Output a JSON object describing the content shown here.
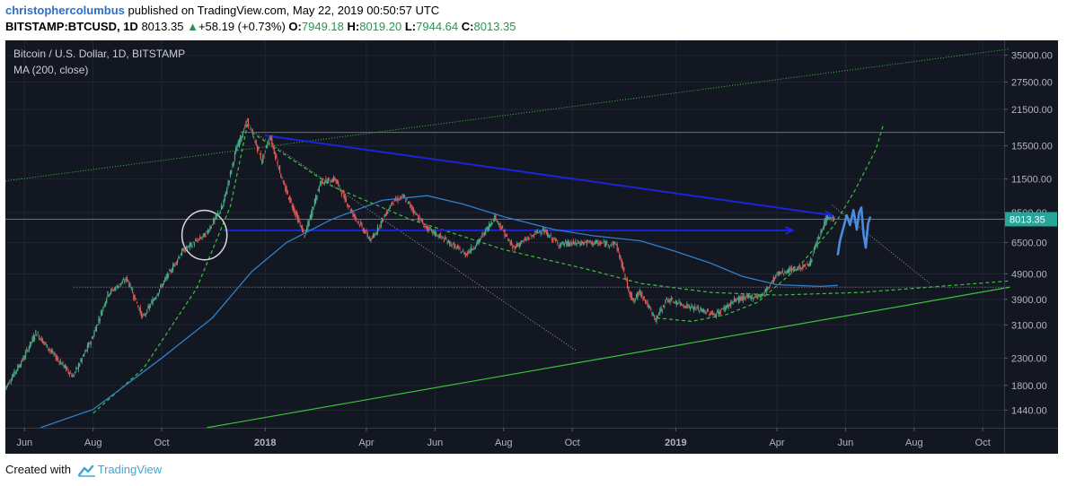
{
  "header": {
    "author": "christophercolumbus",
    "published_text": "published on TradingView.com, May 22, 2019 00:50:57 UTC",
    "symbol": "BITSTAMP:BTCUSD, 1D",
    "last": "8013.35",
    "change": "+58.19 (+0.73%)",
    "o_label": "O:",
    "o_value": "7949.18",
    "h_label": "H:",
    "h_value": "8019.20",
    "l_label": "L:",
    "l_value": "7944.64",
    "c_label": "C:",
    "c_value": "8013.35"
  },
  "legend": {
    "title": "Bitcoin / U.S. Dollar, 1D, BITSTAMP",
    "indicator": "MA (200, close)"
  },
  "footer": {
    "created_with": "Created with",
    "brand": "TradingView"
  },
  "colors": {
    "background": "#131722",
    "up_candle": "#4caf8a",
    "down_candle": "#e05a5a",
    "ma": "#2f80c9",
    "trend_blue": "#1c24d8",
    "green_line": "#3cc13c",
    "dashed_green": "#3cc13c",
    "price_label": "#26a69a",
    "projection": "#4a8de0"
  },
  "chart_data": {
    "type": "candlestick",
    "title": "Bitcoin / U.S. Dollar, 1D, BITSTAMP",
    "indicator": "MA (200, close)",
    "y_scale": "log",
    "ylim": [
      1230,
      40000
    ],
    "xlim": [
      "2017-05-15",
      "2019-10-20"
    ],
    "y_ticks": [
      35000,
      27500,
      21500,
      15500,
      11500,
      8500,
      6500,
      4900,
      3900,
      3100,
      2300,
      1800,
      1440
    ],
    "y_tick_labels": [
      "35000.00",
      "27500.00",
      "21500.00",
      "15500.00",
      "11500.00",
      "8500.00",
      "6500.00",
      "4900.00",
      "3900.00",
      "3100.00",
      "2300.00",
      "1800.00",
      "1440.00"
    ],
    "x_ticks": [
      "2017-06-01",
      "2017-08-01",
      "2017-10-01",
      "2018-01-01",
      "2018-04-01",
      "2018-06-01",
      "2018-08-01",
      "2018-10-01",
      "2019-01-01",
      "2019-04-01",
      "2019-06-01",
      "2019-08-01",
      "2019-10-01"
    ],
    "x_tick_labels": [
      "Jun",
      "Aug",
      "Oct",
      "2018",
      "Apr",
      "Jun",
      "Aug",
      "Oct",
      "2019",
      "Apr",
      "Jun",
      "Aug",
      "Oct"
    ],
    "x_bold": [
      false,
      false,
      false,
      true,
      false,
      false,
      false,
      false,
      true,
      false,
      false,
      false,
      false
    ],
    "last_price": 8013.35,
    "last_price_label": "8013.35",
    "price_path": [
      [
        "2017-05-15",
        1740
      ],
      [
        "2017-06-01",
        2300
      ],
      [
        "2017-06-12",
        2900
      ],
      [
        "2017-06-25",
        2450
      ],
      [
        "2017-07-15",
        1950
      ],
      [
        "2017-08-01",
        2750
      ],
      [
        "2017-08-15",
        4100
      ],
      [
        "2017-09-01",
        4700
      ],
      [
        "2017-09-15",
        3300
      ],
      [
        "2017-10-01",
        4350
      ],
      [
        "2017-10-20",
        6000
      ],
      [
        "2017-11-10",
        7000
      ],
      [
        "2017-11-25",
        9000
      ],
      [
        "2017-12-07",
        15000
      ],
      [
        "2017-12-17",
        19500
      ],
      [
        "2017-12-30",
        13500
      ],
      [
        "2018-01-06",
        17000
      ],
      [
        "2018-01-18",
        11000
      ],
      [
        "2018-02-06",
        6900
      ],
      [
        "2018-02-20",
        11200
      ],
      [
        "2018-03-05",
        11500
      ],
      [
        "2018-03-20",
        8500
      ],
      [
        "2018-04-06",
        6600
      ],
      [
        "2018-04-25",
        9400
      ],
      [
        "2018-05-05",
        9800
      ],
      [
        "2018-05-25",
        7400
      ],
      [
        "2018-06-10",
        6700
      ],
      [
        "2018-06-29",
        5850
      ],
      [
        "2018-07-10",
        6500
      ],
      [
        "2018-07-25",
        8200
      ],
      [
        "2018-08-10",
        6200
      ],
      [
        "2018-09-05",
        7300
      ],
      [
        "2018-09-20",
        6400
      ],
      [
        "2018-10-15",
        6500
      ],
      [
        "2018-11-10",
        6400
      ],
      [
        "2018-11-20",
        4400
      ],
      [
        "2018-11-25",
        3800
      ],
      [
        "2018-12-01",
        4200
      ],
      [
        "2018-12-15",
        3250
      ],
      [
        "2018-12-25",
        3900
      ],
      [
        "2019-01-10",
        3700
      ],
      [
        "2019-02-06",
        3400
      ],
      [
        "2019-02-25",
        3900
      ],
      [
        "2019-03-20",
        4050
      ],
      [
        "2019-04-02",
        4900
      ],
      [
        "2019-04-15",
        5100
      ],
      [
        "2019-04-30",
        5300
      ],
      [
        "2019-05-12",
        7300
      ],
      [
        "2019-05-16",
        8150
      ],
      [
        "2019-05-22",
        8013
      ]
    ],
    "ma200": [
      [
        "2017-06-15",
        1230
      ],
      [
        "2017-08-01",
        1450
      ],
      [
        "2017-10-01",
        2300
      ],
      [
        "2017-11-15",
        3300
      ],
      [
        "2017-12-20",
        5000
      ],
      [
        "2018-01-20",
        6500
      ],
      [
        "2018-03-01",
        8000
      ],
      [
        "2018-04-15",
        9500
      ],
      [
        "2018-05-25",
        9900
      ],
      [
        "2018-06-25",
        9200
      ],
      [
        "2018-08-01",
        8200
      ],
      [
        "2018-09-15",
        7300
      ],
      [
        "2018-10-20",
        6900
      ],
      [
        "2018-12-01",
        6600
      ],
      [
        "2019-01-01",
        6000
      ],
      [
        "2019-02-01",
        5400
      ],
      [
        "2019-03-01",
        4800
      ],
      [
        "2019-04-01",
        4450
      ],
      [
        "2019-05-10",
        4380
      ],
      [
        "2019-05-25",
        4420
      ]
    ],
    "projection": [
      [
        "2019-05-25",
        5800
      ],
      [
        "2019-05-27",
        6600
      ],
      [
        "2019-05-30",
        7400
      ],
      [
        "2019-06-02",
        8300
      ],
      [
        "2019-06-05",
        7600
      ],
      [
        "2019-06-08",
        8700
      ],
      [
        "2019-06-11",
        7300
      ],
      [
        "2019-06-13",
        8500
      ],
      [
        "2019-06-15",
        8900
      ],
      [
        "2019-06-17",
        7000
      ],
      [
        "2019-06-19",
        6200
      ],
      [
        "2019-06-21",
        7700
      ],
      [
        "2019-06-23",
        8200
      ]
    ],
    "trendlines": [
      {
        "style": "green-dotted",
        "from": [
          "2017-05-15",
          11300
        ],
        "to": [
          "2019-10-25",
          37000
        ]
      },
      {
        "style": "green-solid",
        "from": [
          "2017-11-10",
          1230
        ],
        "to": [
          "2019-10-25",
          4350
        ]
      },
      {
        "style": "green-dashed",
        "points": [
          [
            "2017-08-01",
            1400
          ],
          [
            "2017-09-15",
            2100
          ],
          [
            "2017-11-01",
            4300
          ],
          [
            "2017-12-01",
            9000
          ],
          [
            "2017-12-17",
            19500
          ]
        ]
      },
      {
        "style": "green-dashed",
        "points": [
          [
            "2017-12-20",
            17500
          ],
          [
            "2018-03-01",
            10800
          ],
          [
            "2018-05-10",
            8000
          ],
          [
            "2018-08-01",
            6100
          ],
          [
            "2018-10-15",
            5100
          ],
          [
            "2018-12-01",
            4500
          ],
          [
            "2019-02-01",
            4150
          ],
          [
            "2019-04-01",
            4050
          ],
          [
            "2019-06-15",
            4150
          ],
          [
            "2019-10-25",
            4600
          ]
        ]
      },
      {
        "style": "green-dashed",
        "points": [
          [
            "2018-12-15",
            3300
          ],
          [
            "2019-01-15",
            3200
          ],
          [
            "2019-02-15",
            3400
          ],
          [
            "2019-03-15",
            3800
          ],
          [
            "2019-04-20",
            5200
          ],
          [
            "2019-05-22",
            7600
          ],
          [
            "2019-06-10",
            10500
          ],
          [
            "2019-06-28",
            15000
          ],
          [
            "2019-07-05",
            19000
          ]
        ]
      },
      {
        "style": "gray-dotted",
        "from": [
          "2017-12-20",
          17800
        ],
        "to": [
          "2018-10-05",
          2450
        ]
      },
      {
        "style": "gray-dotted",
        "from": [
          "2019-05-20",
          9100
        ],
        "to": [
          "2019-08-15",
          4500
        ]
      },
      {
        "style": "gray-solid",
        "from": [
          "2017-12-10",
          17500
        ],
        "to": [
          "2019-10-20",
          17500
        ]
      },
      {
        "style": "gray-dotted",
        "from": [
          "2017-07-15",
          4350
        ],
        "to": [
          "2019-10-25",
          4350
        ]
      },
      {
        "style": "gray-solid",
        "from": [
          "2017-05-15",
          8013
        ],
        "to": [
          "2019-10-25",
          8013
        ]
      },
      {
        "style": "blue-arrow",
        "from": [
          "2018-01-01",
          17000
        ],
        "to": [
          "2019-05-20",
          8300
        ]
      },
      {
        "style": "blue-arrow",
        "from": [
          "2017-11-25",
          7250
        ],
        "to": [
          "2019-04-15",
          7250
        ]
      }
    ],
    "circle": {
      "center": [
        "2017-11-08",
        6950
      ],
      "rx_days": 20
    }
  }
}
